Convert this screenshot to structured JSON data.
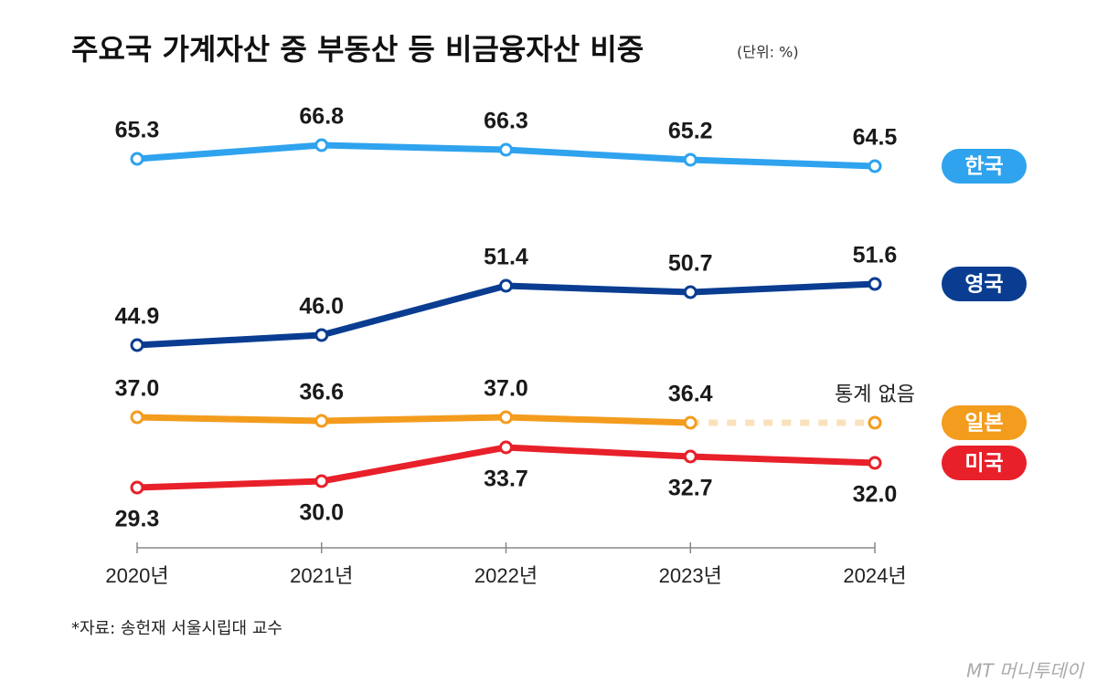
{
  "chart_data": {
    "type": "line",
    "title": "주요국 가계자산 중 부동산 등 비금융자산 비중",
    "subtitle": "(단위: %)",
    "source": "*자료: 송헌재 서울시립대 교수",
    "logo": "MT 머니투데이",
    "categories": [
      "2020년",
      "2021년",
      "2022년",
      "2023년",
      "2024년"
    ],
    "ylim": [
      22.5,
      70
    ],
    "series": [
      {
        "name": "한국",
        "color": "#2fa3ee",
        "label_position": "above",
        "values": [
          65.3,
          66.8,
          66.3,
          65.2,
          64.5
        ],
        "value_labels": [
          "65.3",
          "66.8",
          "66.3",
          "65.2",
          "64.5"
        ]
      },
      {
        "name": "영국",
        "color": "#0a3d91",
        "label_position": "above",
        "values": [
          44.9,
          46,
          51.4,
          50.7,
          51.6
        ],
        "value_labels": [
          "44.9",
          "46.0",
          "51.4",
          "50.7",
          "51.6"
        ]
      },
      {
        "name": "일본",
        "color": "#f39c1e",
        "label_position": "above",
        "values": [
          37,
          36.6,
          37,
          36.4,
          null
        ],
        "value_labels": [
          "37.0",
          "36.6",
          "37.0",
          "36.4",
          null
        ]
      },
      {
        "name": "미국",
        "color": "#e8202a",
        "label_position": "below",
        "values": [
          29.3,
          30,
          33.7,
          32.7,
          32
        ],
        "value_labels": [
          "29.3",
          "30.0",
          "33.7",
          "32.7",
          "32.0"
        ]
      }
    ],
    "annotations": [
      {
        "text": "통계 없음",
        "series": 2,
        "index": 4
      }
    ]
  }
}
